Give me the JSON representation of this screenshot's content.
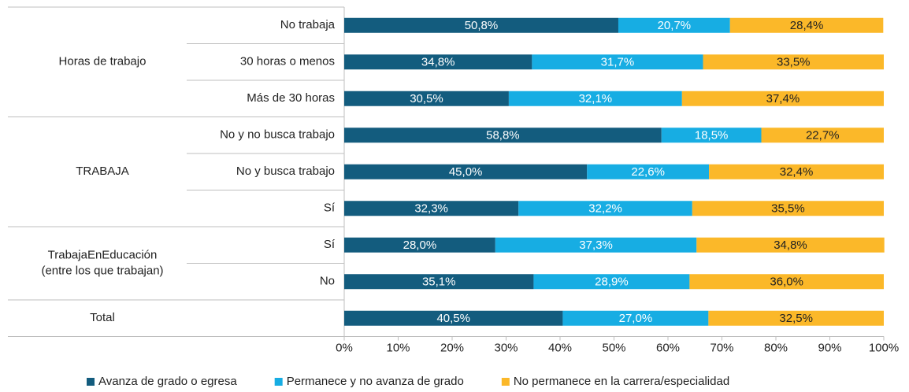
{
  "chart_data": {
    "type": "stacked_barh",
    "groups": [
      {
        "label_lines": [
          "Horas de trabajo"
        ],
        "categories": [
          "No trabaja",
          "30 horas o menos",
          "Más de 30 horas"
        ]
      },
      {
        "label_lines": [
          "TRABAJA"
        ],
        "categories": [
          "No y no busca trabajo",
          "No y busca trabajo",
          "Sí"
        ]
      },
      {
        "label_lines": [
          "TrabajaEnEducación",
          "(entre los que trabajan)"
        ],
        "categories": [
          "Sí",
          "No"
        ]
      },
      {
        "label_lines": [
          "Total"
        ],
        "categories": [
          null
        ]
      }
    ],
    "series": [
      {
        "name": "Avanza de grado o egresa",
        "color": "#135c7e",
        "values": [
          50.8,
          34.8,
          30.5,
          58.8,
          45.0,
          32.3,
          28.0,
          35.1,
          40.5
        ],
        "value_labels": [
          "50,8%",
          "34,8%",
          "30,5%",
          "58,8%",
          "45,0%",
          "32,3%",
          "28,0%",
          "35,1%",
          "40,5%"
        ]
      },
      {
        "name": "Permanece y no avanza de grado",
        "color": "#17ade3",
        "values": [
          20.7,
          31.7,
          32.1,
          18.5,
          22.6,
          32.2,
          37.3,
          28.9,
          27.0
        ],
        "value_labels": [
          "20,7%",
          "31,7%",
          "32,1%",
          "18,5%",
          "22,6%",
          "32,2%",
          "37,3%",
          "28,9%",
          "27,0%"
        ]
      },
      {
        "name": "No permanece en la carrera/especialidad",
        "color": "#fbb829",
        "values": [
          28.4,
          33.5,
          37.4,
          22.7,
          32.4,
          35.5,
          34.8,
          36.0,
          32.5
        ],
        "value_labels": [
          "28,4%",
          "33,5%",
          "37,4%",
          "22,7%",
          "32,4%",
          "35,5%",
          "34,8%",
          "36,0%",
          "32,5%"
        ]
      }
    ],
    "xlim": [
      0,
      100
    ],
    "xticks": [
      {
        "value": 0,
        "label": "0%"
      },
      {
        "value": 10,
        "label": "10%"
      },
      {
        "value": 20,
        "label": "20%"
      },
      {
        "value": 30,
        "label": "30%"
      },
      {
        "value": 40,
        "label": "40%"
      },
      {
        "value": 50,
        "label": "50%"
      },
      {
        "value": 60,
        "label": "60%"
      },
      {
        "value": 70,
        "label": "70%"
      },
      {
        "value": 80,
        "label": "80%"
      },
      {
        "value": 90,
        "label": "90%"
      },
      {
        "value": 100,
        "label": "100%"
      }
    ],
    "legend": "bottom"
  }
}
